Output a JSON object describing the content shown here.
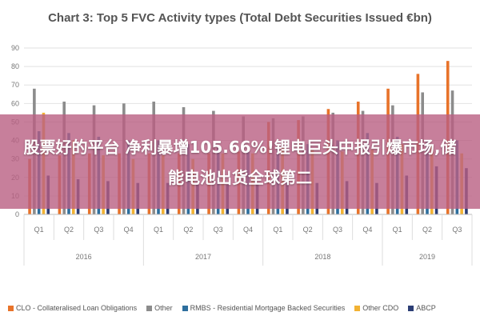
{
  "chart_data": {
    "type": "bar",
    "title": "Chart 3: Top 5 FVC Activity types (Total Debt Securities Issued €bn)",
    "yticks": [
      0,
      10,
      20,
      30,
      40,
      50,
      60,
      70,
      80,
      90
    ],
    "ylim": [
      0,
      90
    ],
    "grid": true,
    "legend_position": "bottom",
    "categories": [
      "Q1",
      "Q2",
      "Q3",
      "Q4",
      "Q1",
      "Q2",
      "Q3",
      "Q4",
      "Q1",
      "Q2",
      "Q3",
      "Q4",
      "Q1",
      "Q2",
      "Q3"
    ],
    "groups": [
      {
        "label": "2016",
        "count": 4
      },
      {
        "label": "2017",
        "count": 4
      },
      {
        "label": "2018",
        "count": 4
      },
      {
        "label": "2019",
        "count": 3
      }
    ],
    "series": [
      {
        "name": "CLO - Collateralised Loan Obligations",
        "color": "#e8732a",
        "values": [
          30,
          32,
          33,
          33,
          33,
          33,
          33,
          34,
          50,
          51,
          57,
          61,
          68,
          76,
          83
        ]
      },
      {
        "name": "Other",
        "color": "#8c8c8c",
        "values": [
          68,
          61,
          59,
          60,
          61,
          58,
          56,
          53,
          52,
          53,
          55,
          56,
          59,
          66,
          67
        ]
      },
      {
        "name": "RMBS - Residential Mortgage Backed Securities",
        "color": "#2e6f9e",
        "values": [
          45,
          44,
          42,
          40,
          40,
          38,
          36,
          34,
          36,
          38,
          40,
          44,
          42,
          40,
          40
        ]
      },
      {
        "name": "Other CDO",
        "color": "#f2b233",
        "values": [
          55,
          40,
          32,
          30,
          32,
          30,
          33,
          33,
          36,
          35,
          34,
          35,
          38,
          37,
          33
        ]
      },
      {
        "name": "ABCP",
        "color": "#2c3e75",
        "values": [
          21,
          19,
          18,
          17,
          17,
          16,
          16,
          17,
          18,
          17,
          18,
          17,
          21,
          26,
          25
        ]
      }
    ]
  },
  "banner": {
    "text": "股票好的平台 净利暴增105.66%!锂电巨头中报引爆市场,储能电池出货全球第二"
  }
}
